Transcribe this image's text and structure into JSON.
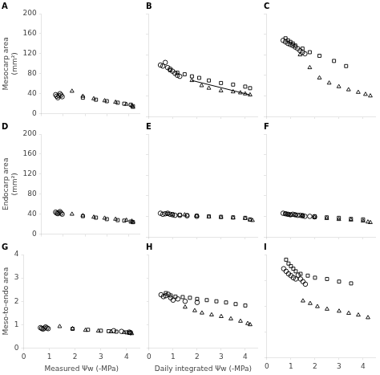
{
  "chart_data": [
    {
      "type": "scatter",
      "title": "A",
      "xlim": [
        0,
        4.5
      ],
      "xticks": [
        0,
        1,
        2,
        3,
        4
      ],
      "ylim": [
        0,
        200
      ],
      "yticks": [
        0,
        40,
        80,
        120,
        160,
        200
      ],
      "ylabel": "Mesocarp area\n(mm²)",
      "grid": false,
      "legend": false,
      "tick_labels": "y",
      "series": [
        {
          "marker": "circle",
          "color": "#000000",
          "x": [
            0.65,
            0.7,
            0.75,
            0.8,
            0.85,
            0.9,
            0.95
          ],
          "values": [
            38,
            35,
            32,
            36,
            40,
            37,
            34
          ]
        },
        {
          "marker": "square",
          "color": "#000000",
          "x": [
            1.9,
            2.5,
            3.0,
            3.5,
            3.8,
            4.1,
            4.2
          ],
          "values": [
            32,
            28,
            25,
            22,
            20,
            18,
            15
          ]
        },
        {
          "marker": "triangle",
          "color": "#000000",
          "x": [
            1.4,
            1.9,
            2.4,
            2.9,
            3.4,
            3.9,
            4.15,
            4.2
          ],
          "values": [
            45,
            35,
            30,
            26,
            23,
            19,
            16,
            13
          ]
        }
      ]
    },
    {
      "type": "scatter",
      "title": "B",
      "xlim": [
        0,
        4.5
      ],
      "xticks": [
        0,
        1,
        2,
        3,
        4
      ],
      "ylim": [
        0,
        200
      ],
      "yticks": [
        0,
        40,
        80,
        120,
        160,
        200
      ],
      "grid": false,
      "legend": false,
      "tick_labels": false,
      "series": [
        {
          "marker": "circle",
          "color": "#000000",
          "x": [
            0.5,
            0.6,
            0.7,
            0.8,
            0.9,
            1.0,
            1.1,
            1.2,
            1.3
          ],
          "values": [
            100,
            98,
            105,
            95,
            92,
            88,
            84,
            80,
            78
          ]
        },
        {
          "marker": "square",
          "color": "#000000",
          "x": [
            0.9,
            1.2,
            1.5,
            1.8,
            2.1,
            2.5,
            3.0,
            3.5,
            4.0,
            4.2
          ],
          "values": [
            90,
            85,
            82,
            78,
            75,
            70,
            65,
            62,
            58,
            55
          ]
        },
        {
          "marker": "triangle",
          "color": "#000000",
          "x": [
            1.8,
            2.2,
            2.5,
            3.0,
            3.5,
            3.8,
            4.0,
            4.2
          ],
          "values": [
            70,
            60,
            55,
            50,
            48,
            46,
            44,
            42
          ]
        },
        {
          "type": "line",
          "marker": "none",
          "color": "#000000",
          "x": [
            1.8,
            4.2
          ],
          "values": [
            70,
            42
          ]
        }
      ]
    },
    {
      "type": "scatter",
      "title": "C",
      "xlim": [
        0,
        4.5
      ],
      "xticks": [
        0,
        1,
        2,
        3,
        4
      ],
      "ylim": [
        0,
        200
      ],
      "yticks": [
        0,
        40,
        80,
        120,
        160,
        200
      ],
      "grid": false,
      "legend": false,
      "tick_labels": false,
      "series": [
        {
          "marker": "circle",
          "color": "#000000",
          "x": [
            0.7,
            0.8,
            0.9,
            1.0,
            1.1,
            1.2,
            1.3,
            1.4,
            1.5,
            1.6
          ],
          "values": [
            148,
            145,
            142,
            140,
            138,
            135,
            132,
            128,
            125,
            122
          ]
        },
        {
          "marker": "square",
          "color": "#000000",
          "x": [
            0.8,
            0.9,
            1.0,
            1.1,
            1.2,
            1.5,
            1.8,
            2.2,
            2.8,
            3.3
          ],
          "values": [
            152,
            148,
            145,
            142,
            138,
            132,
            125,
            118,
            108,
            98
          ]
        },
        {
          "marker": "triangle",
          "color": "#000000",
          "x": [
            1.4,
            1.8,
            2.2,
            2.6,
            3.0,
            3.4,
            3.8,
            4.1,
            4.3
          ],
          "values": [
            120,
            95,
            75,
            65,
            58,
            52,
            47,
            43,
            40
          ]
        }
      ]
    },
    {
      "type": "scatter",
      "title": "D",
      "xlim": [
        0,
        4.5
      ],
      "xticks": [
        0,
        1,
        2,
        3,
        4
      ],
      "ylim": [
        0,
        200
      ],
      "yticks": [
        0,
        40,
        80,
        120,
        160,
        200
      ],
      "ylabel": "Endocarp area\n(mm²)",
      "grid": false,
      "legend": false,
      "tick_labels": "y",
      "series": [
        {
          "marker": "circle",
          "color": "#000000",
          "x": [
            0.65,
            0.7,
            0.75,
            0.8,
            0.85,
            0.9,
            0.95
          ],
          "values": [
            44,
            42,
            41,
            43,
            45,
            42,
            40
          ]
        },
        {
          "marker": "square",
          "color": "#000000",
          "x": [
            1.9,
            2.5,
            3.0,
            3.5,
            3.8,
            4.1,
            4.2
          ],
          "values": [
            36,
            33,
            30,
            28,
            27,
            25,
            24
          ]
        },
        {
          "marker": "triangle",
          "color": "#000000",
          "x": [
            1.4,
            1.9,
            2.4,
            2.9,
            3.4,
            3.9,
            4.15,
            4.2
          ],
          "values": [
            40,
            37,
            34,
            32,
            30,
            28,
            26,
            24
          ]
        }
      ]
    },
    {
      "type": "scatter",
      "title": "E",
      "xlim": [
        0,
        4.5
      ],
      "xticks": [
        0,
        1,
        2,
        3,
        4
      ],
      "ylim": [
        0,
        200
      ],
      "yticks": [
        0,
        40,
        80,
        120,
        160,
        200
      ],
      "grid": false,
      "legend": false,
      "tick_labels": false,
      "series": [
        {
          "marker": "circle",
          "color": "#000000",
          "x": [
            0.5,
            0.6,
            0.7,
            0.8,
            0.9,
            1.0,
            1.1,
            1.3,
            1.6,
            2.0
          ],
          "values": [
            46,
            44,
            45,
            46,
            44,
            43,
            42,
            42,
            41,
            40
          ]
        },
        {
          "marker": "square",
          "color": "#000000",
          "x": [
            0.8,
            1.0,
            1.3,
            1.6,
            2.0,
            2.5,
            3.0,
            3.5,
            4.0,
            4.2
          ],
          "values": [
            45,
            44,
            43,
            42,
            41,
            40,
            39,
            38,
            37,
            34
          ]
        },
        {
          "marker": "triangle",
          "color": "#000000",
          "x": [
            1.5,
            2.0,
            2.5,
            3.0,
            3.5,
            4.0,
            4.2,
            4.3
          ],
          "values": [
            43,
            41,
            39,
            38,
            37,
            36,
            33,
            32
          ]
        }
      ]
    },
    {
      "type": "scatter",
      "title": "F",
      "xlim": [
        0,
        4.5
      ],
      "xticks": [
        0,
        1,
        2,
        3,
        4
      ],
      "ylim": [
        0,
        200
      ],
      "yticks": [
        0,
        40,
        80,
        120,
        160,
        200
      ],
      "grid": false,
      "legend": false,
      "tick_labels": false,
      "series": [
        {
          "marker": "circle",
          "color": "#000000",
          "x": [
            0.7,
            0.8,
            0.9,
            1.0,
            1.1,
            1.2,
            1.3,
            1.4,
            1.5,
            1.6,
            1.8,
            2.0
          ],
          "values": [
            46,
            45,
            44,
            43,
            44,
            43,
            42,
            42,
            41,
            40,
            40,
            39
          ]
        },
        {
          "marker": "square",
          "color": "#000000",
          "x": [
            0.8,
            0.9,
            1.0,
            1.2,
            1.5,
            2.0,
            2.5,
            3.0,
            3.5,
            4.0
          ],
          "values": [
            45,
            44,
            43,
            43,
            42,
            40,
            38,
            37,
            35,
            34
          ]
        },
        {
          "marker": "triangle",
          "color": "#000000",
          "x": [
            1.5,
            2.0,
            2.5,
            3.0,
            3.5,
            4.0,
            4.2,
            4.3
          ],
          "values": [
            41,
            38,
            36,
            34,
            33,
            31,
            29,
            28
          ]
        }
      ]
    },
    {
      "type": "scatter",
      "title": "G",
      "xlim": [
        0,
        4.5
      ],
      "xticks": [
        0,
        1,
        2,
        3,
        4
      ],
      "ylim": [
        0,
        4
      ],
      "yticks": [
        0,
        1,
        2,
        3,
        4
      ],
      "xlabel": "Measured Ψw (-MPa)",
      "ylabel": "Meso-to-endo area",
      "grid": false,
      "legend": false,
      "series": [
        {
          "marker": "circle",
          "color": "#000000",
          "x": [
            0.65,
            0.7,
            0.75,
            0.8,
            0.85,
            0.9,
            0.95,
            3.5,
            3.8,
            4.1,
            4.15
          ],
          "values": [
            0.87,
            0.84,
            0.81,
            0.85,
            0.9,
            0.86,
            0.83,
            0.74,
            0.71,
            0.68,
            0.66
          ]
        },
        {
          "marker": "square",
          "color": "#000000",
          "x": [
            1.9,
            2.5,
            3.0,
            3.3,
            3.6,
            4.0,
            4.1
          ],
          "values": [
            0.82,
            0.78,
            0.74,
            0.72,
            0.7,
            0.67,
            0.65
          ]
        },
        {
          "marker": "triangle",
          "color": "#000000",
          "x": [
            1.4,
            1.9,
            2.4,
            2.9,
            3.4,
            3.9,
            4.15,
            4.2
          ],
          "values": [
            0.92,
            0.83,
            0.76,
            0.73,
            0.7,
            0.67,
            0.64,
            0.62
          ]
        }
      ]
    },
    {
      "type": "scatter",
      "title": "H",
      "xlim": [
        0,
        4.5
      ],
      "xticks": [
        0,
        1,
        2,
        3,
        4
      ],
      "ylim": [
        0,
        4
      ],
      "yticks": [
        0,
        1,
        2,
        3,
        4
      ],
      "xlabel": "Daily integrated Ψw (-MPa)",
      "grid": false,
      "legend": false,
      "tick_labels": "x",
      "series": [
        {
          "marker": "circle",
          "color": "#000000",
          "x": [
            0.5,
            0.6,
            0.7,
            0.8,
            0.9,
            1.0,
            1.2,
            1.5,
            2.0
          ],
          "values": [
            2.28,
            2.2,
            2.24,
            2.3,
            2.15,
            2.05,
            2.1,
            2.0,
            1.95
          ]
        },
        {
          "marker": "square",
          "color": "#000000",
          "x": [
            0.7,
            0.9,
            1.1,
            1.4,
            1.7,
            2.0,
            2.4,
            2.8,
            3.2,
            3.6,
            4.0
          ],
          "values": [
            2.35,
            2.25,
            2.2,
            2.18,
            2.15,
            2.1,
            2.05,
            2.0,
            1.95,
            1.88,
            1.82
          ]
        },
        {
          "marker": "triangle",
          "color": "#000000",
          "x": [
            1.5,
            1.9,
            2.2,
            2.6,
            3.0,
            3.4,
            3.8,
            4.1,
            4.2
          ],
          "values": [
            1.75,
            1.6,
            1.5,
            1.42,
            1.35,
            1.25,
            1.15,
            1.05,
            1.0
          ]
        }
      ]
    },
    {
      "type": "scatter",
      "title": "I",
      "xlim": [
        0,
        4.5
      ],
      "xticks": [
        0,
        1,
        2,
        3,
        4
      ],
      "ylim": [
        0,
        4
      ],
      "yticks": [
        0,
        1,
        2,
        3,
        4
      ],
      "grid": false,
      "legend": false,
      "tick_labels": "x",
      "series": [
        {
          "marker": "circle",
          "color": "#000000",
          "x": [
            0.7,
            0.8,
            0.9,
            1.0,
            1.1,
            1.2,
            1.3,
            1.4,
            1.5,
            1.6
          ],
          "values": [
            3.45,
            3.35,
            3.25,
            3.18,
            3.1,
            3.05,
            3.2,
            3.05,
            2.95,
            2.85
          ]
        },
        {
          "marker": "square",
          "color": "#000000",
          "x": [
            0.8,
            0.9,
            1.0,
            1.1,
            1.2,
            1.4,
            1.7,
            2.0,
            2.5,
            3.0,
            3.5
          ],
          "values": [
            3.8,
            3.65,
            3.55,
            3.45,
            3.35,
            3.25,
            3.18,
            3.1,
            3.05,
            2.95,
            2.88
          ]
        },
        {
          "marker": "triangle",
          "color": "#000000",
          "x": [
            1.5,
            1.8,
            2.1,
            2.5,
            3.0,
            3.4,
            3.8,
            4.2
          ],
          "values": [
            2.2,
            2.1,
            1.98,
            1.88,
            1.8,
            1.72,
            1.65,
            1.55
          ]
        }
      ]
    }
  ]
}
